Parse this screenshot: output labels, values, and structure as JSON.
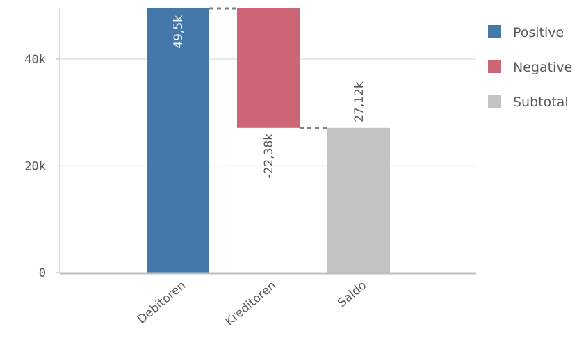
{
  "chart_data": {
    "type": "waterfall",
    "categories": [
      "Debitoren",
      "Kreditoren",
      "Saldo"
    ],
    "steps": [
      {
        "category": "Debitoren",
        "kind": "Positive",
        "start": 0,
        "end": 49500,
        "label": "49,5k"
      },
      {
        "category": "Kreditoren",
        "kind": "Negative",
        "start": 49500,
        "end": 27120,
        "label": "-22,38k"
      },
      {
        "category": "Saldo",
        "kind": "Subtotal",
        "start": 0,
        "end": 27120,
        "label": "27,12k"
      }
    ],
    "ylim": [
      0,
      49500
    ],
    "yticks": [
      {
        "value": 0,
        "label": "0"
      },
      {
        "value": 20000,
        "label": "20k"
      },
      {
        "value": 40000,
        "label": "40k"
      }
    ],
    "grid": true,
    "legend": {
      "position": "right",
      "entries": [
        {
          "name": "Positive",
          "color": "#4477aa"
        },
        {
          "name": "Negative",
          "color": "#cc6677"
        },
        {
          "name": "Subtotal",
          "color": "#c3c3c3"
        }
      ]
    },
    "colors": {
      "Positive": "#4477aa",
      "Negative": "#cc6677",
      "Subtotal": "#c3c3c3",
      "grid": "#d9d9d9",
      "axis": "#bfbfbf",
      "text": "#595959",
      "label_on_bar": "#ffffff",
      "label_off_bar": "#595959",
      "connector": "#808080"
    }
  }
}
